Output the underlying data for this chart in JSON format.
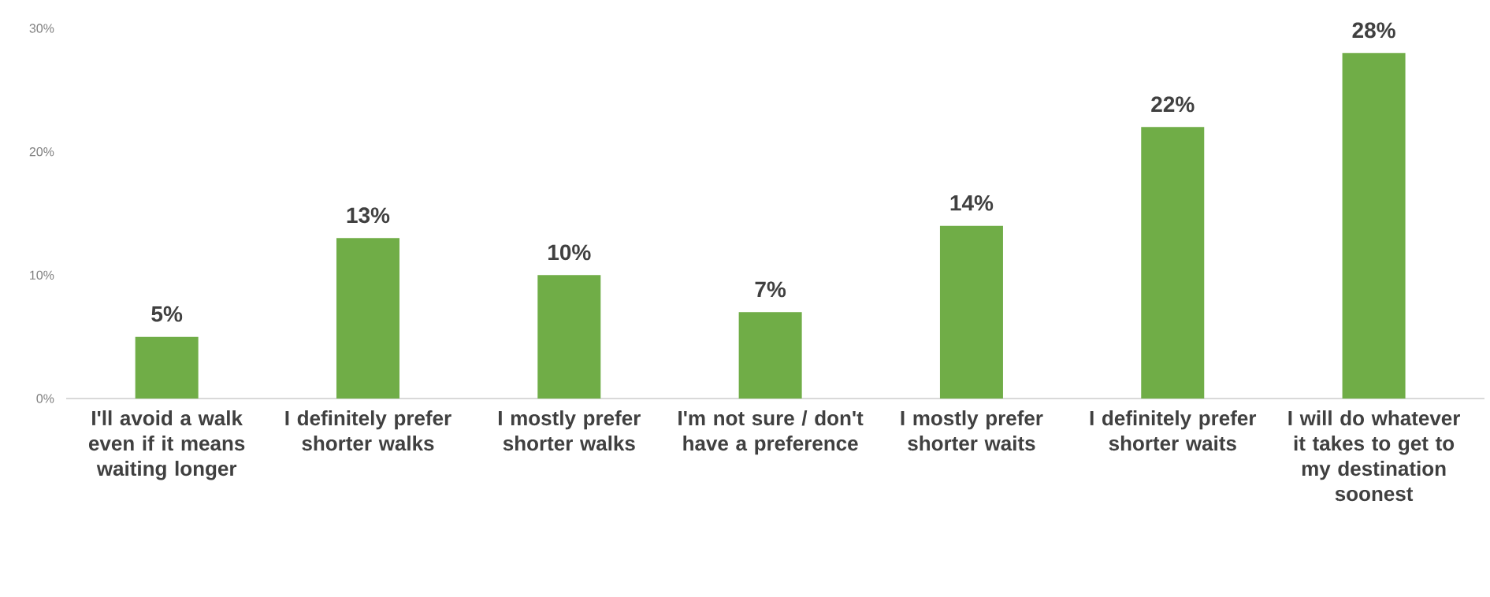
{
  "chart_data": {
    "type": "bar",
    "categories": [
      "I'll avoid a walk even if it means waiting longer",
      "I definitely prefer shorter walks",
      "I mostly prefer shorter walks",
      "I'm not sure / don't have a preference",
      "I mostly prefer shorter waits",
      "I definitely prefer shorter waits",
      "I will do whatever it takes to get to my destination soonest"
    ],
    "values": [
      5,
      13,
      10,
      7,
      14,
      22,
      28
    ],
    "value_labels": [
      "5%",
      "13%",
      "10%",
      "7%",
      "14%",
      "22%",
      "28%"
    ],
    "color": "#70ad47",
    "ylim": [
      0,
      30
    ],
    "yticks": [
      {
        "value": 0,
        "label": "0%"
      },
      {
        "value": 10,
        "label": "10%"
      },
      {
        "value": 20,
        "label": "20%"
      },
      {
        "value": 30,
        "label": "30%"
      }
    ]
  }
}
